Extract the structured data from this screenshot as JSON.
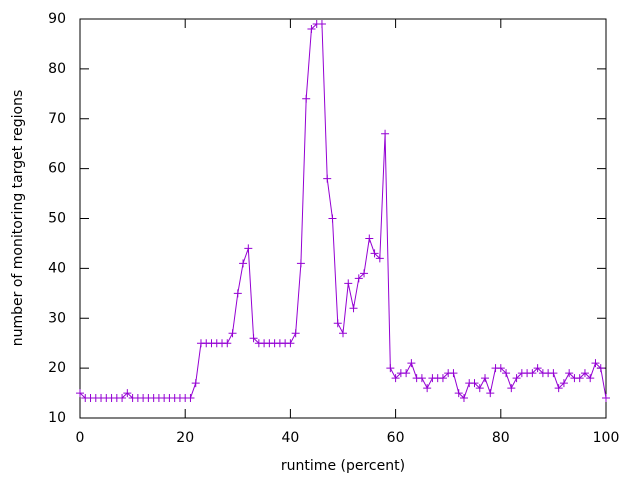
{
  "chart_data": {
    "type": "line",
    "xlabel": "runtime (percent)",
    "ylabel": "number of monitoring target regions",
    "x": [
      0,
      1,
      2,
      3,
      4,
      5,
      6,
      7,
      8,
      9,
      10,
      11,
      12,
      13,
      14,
      15,
      16,
      17,
      18,
      19,
      20,
      21,
      22,
      23,
      24,
      25,
      26,
      27,
      28,
      29,
      30,
      31,
      32,
      33,
      34,
      35,
      36,
      37,
      38,
      39,
      40,
      41,
      42,
      43,
      44,
      45,
      46,
      47,
      48,
      49,
      50,
      51,
      52,
      53,
      54,
      55,
      56,
      57,
      58,
      59,
      60,
      61,
      62,
      63,
      64,
      65,
      66,
      67,
      68,
      69,
      70,
      71,
      72,
      73,
      74,
      75,
      76,
      77,
      78,
      79,
      80,
      81,
      82,
      83,
      84,
      85,
      86,
      87,
      88,
      89,
      90,
      91,
      92,
      93,
      94,
      95,
      96,
      97,
      98,
      99,
      100
    ],
    "series": [
      {
        "color": "#9400d3",
        "values": [
          15,
          14,
          14,
          14,
          14,
          14,
          14,
          14,
          14,
          15,
          14,
          14,
          14,
          14,
          14,
          14,
          14,
          14,
          14,
          14,
          14,
          14,
          17,
          25,
          25,
          25,
          25,
          25,
          25,
          27,
          35,
          41,
          44,
          26,
          25,
          25,
          25,
          25,
          25,
          25,
          25,
          27,
          41,
          74,
          88,
          89,
          89,
          58,
          50,
          29,
          27,
          37,
          32,
          38,
          39,
          46,
          43,
          42,
          67,
          20,
          18,
          19,
          19,
          21,
          18,
          18,
          16,
          18,
          18,
          18,
          19,
          19,
          15,
          14,
          17,
          17,
          16,
          18,
          15,
          20,
          20,
          19,
          16,
          18,
          19,
          19,
          19,
          20,
          19,
          19,
          19,
          16,
          17,
          19,
          18,
          18,
          19,
          18,
          21,
          20,
          14
        ]
      }
    ],
    "xlim": [
      0,
      100
    ],
    "xticks": [
      0,
      20,
      40,
      60,
      80,
      100
    ],
    "ylim": [
      10,
      90
    ],
    "yticks": [
      10,
      20,
      30,
      40,
      50,
      60,
      70,
      80,
      90
    ],
    "grid": false
  }
}
